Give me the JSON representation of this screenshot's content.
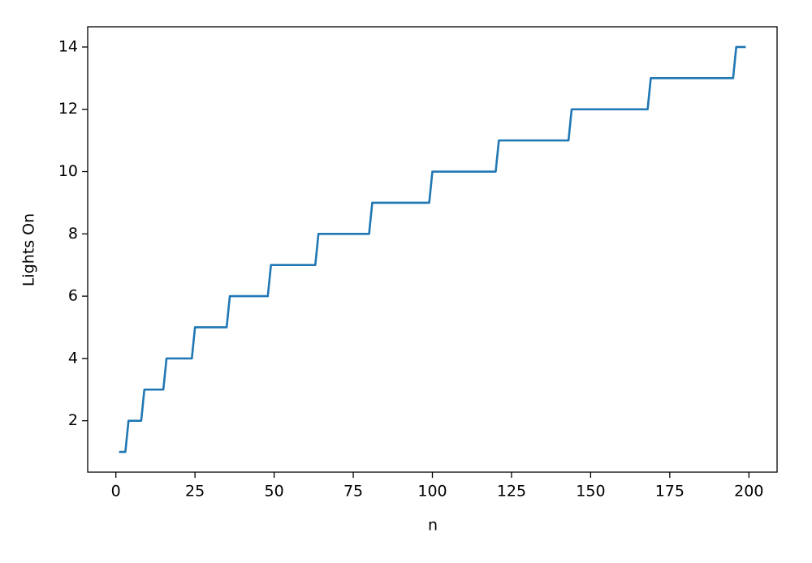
{
  "chart_data": {
    "type": "line",
    "x_label": "n",
    "y_label": "Lights On",
    "x": [
      1,
      3,
      4,
      8,
      9,
      15,
      16,
      24,
      25,
      35,
      36,
      48,
      49,
      63,
      64,
      80,
      81,
      99,
      100,
      120,
      121,
      143,
      144,
      168,
      169,
      195,
      196,
      199
    ],
    "series": [
      {
        "color": "#1f77b4",
        "values": [
          1,
          1,
          2,
          2,
          3,
          3,
          4,
          4,
          5,
          5,
          6,
          6,
          7,
          7,
          8,
          8,
          9,
          9,
          10,
          10,
          11,
          11,
          12,
          12,
          13,
          13,
          14,
          14
        ]
      }
    ],
    "xlim": [
      -8.9,
      208.9
    ],
    "xticks": [
      0,
      25,
      50,
      75,
      100,
      125,
      150,
      175,
      200
    ],
    "ylim": [
      0.35,
      14.65
    ],
    "yticks": [
      2,
      4,
      6,
      8,
      10,
      12,
      14
    ],
    "grid": false
  }
}
